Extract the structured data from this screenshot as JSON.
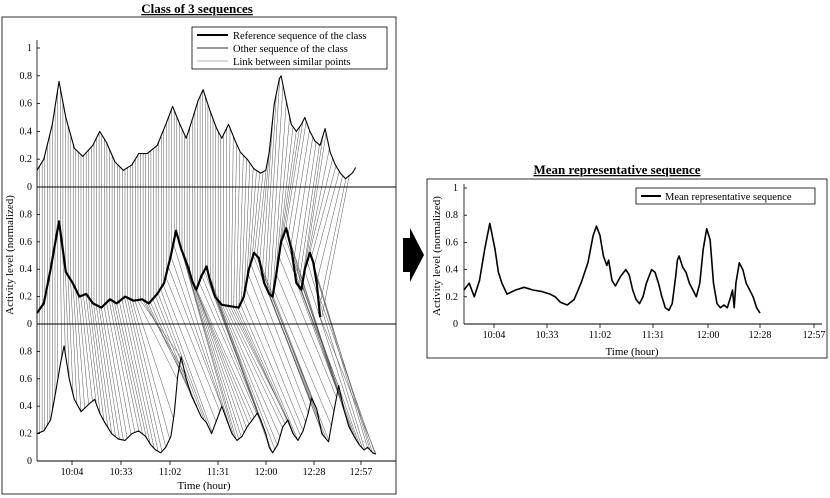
{
  "arrow_icon": "right-arrow-icon",
  "chart_data": [
    {
      "type": "line",
      "title": "Class of 3 sequences",
      "xlabel": "Time (hour)",
      "ylabel": "Activity level (normalized)",
      "x_ticks": [
        "10:04",
        "10:33",
        "11:02",
        "11:31",
        "12:00",
        "12:28",
        "12:57"
      ],
      "y_ticks": [
        "0",
        "0.2",
        "0.4",
        "0.6",
        "0.8",
        "1"
      ],
      "y_ticks_mid": [
        "0",
        "0.2",
        "0.4",
        "0.6",
        "0.8"
      ],
      "ylim": [
        0,
        1
      ],
      "legend": [
        "Reference sequence of the class",
        "Other sequence of the class",
        "Link between similar points"
      ],
      "series": [
        {
          "name": "Other sequence (top)",
          "points": [
            [
              0,
              0.12
            ],
            [
              0.02,
              0.2
            ],
            [
              0.045,
              0.45
            ],
            [
              0.065,
              0.76
            ],
            [
              0.085,
              0.5
            ],
            [
              0.11,
              0.28
            ],
            [
              0.135,
              0.22
            ],
            [
              0.165,
              0.3
            ],
            [
              0.185,
              0.4
            ],
            [
              0.205,
              0.32
            ],
            [
              0.23,
              0.18
            ],
            [
              0.255,
              0.12
            ],
            [
              0.28,
              0.16
            ],
            [
              0.3,
              0.24
            ],
            [
              0.325,
              0.24
            ],
            [
              0.355,
              0.3
            ],
            [
              0.38,
              0.45
            ],
            [
              0.4,
              0.58
            ],
            [
              0.42,
              0.46
            ],
            [
              0.44,
              0.35
            ],
            [
              0.46,
              0.5
            ],
            [
              0.475,
              0.62
            ],
            [
              0.49,
              0.7
            ],
            [
              0.51,
              0.55
            ],
            [
              0.53,
              0.42
            ],
            [
              0.545,
              0.35
            ],
            [
              0.555,
              0.4
            ],
            [
              0.565,
              0.45
            ],
            [
              0.585,
              0.33
            ],
            [
              0.6,
              0.25
            ],
            [
              0.62,
              0.2
            ],
            [
              0.64,
              0.13
            ],
            [
              0.66,
              0.1
            ],
            [
              0.675,
              0.12
            ],
            [
              0.685,
              0.25
            ],
            [
              0.7,
              0.6
            ],
            [
              0.715,
              0.78
            ],
            [
              0.72,
              0.8
            ],
            [
              0.735,
              0.62
            ],
            [
              0.75,
              0.45
            ],
            [
              0.765,
              0.4
            ],
            [
              0.78,
              0.45
            ],
            [
              0.79,
              0.5
            ],
            [
              0.805,
              0.4
            ],
            [
              0.82,
              0.33
            ],
            [
              0.835,
              0.3
            ],
            [
              0.85,
              0.42
            ],
            [
              0.865,
              0.25
            ],
            [
              0.88,
              0.16
            ],
            [
              0.895,
              0.1
            ],
            [
              0.91,
              0.06
            ],
            [
              0.93,
              0.1
            ],
            [
              0.94,
              0.14
            ]
          ]
        },
        {
          "name": "Reference sequence (middle)",
          "points": [
            [
              0,
              0.08
            ],
            [
              0.02,
              0.15
            ],
            [
              0.04,
              0.4
            ],
            [
              0.065,
              0.75
            ],
            [
              0.085,
              0.38
            ],
            [
              0.105,
              0.3
            ],
            [
              0.125,
              0.2
            ],
            [
              0.145,
              0.22
            ],
            [
              0.165,
              0.15
            ],
            [
              0.19,
              0.12
            ],
            [
              0.215,
              0.18
            ],
            [
              0.235,
              0.15
            ],
            [
              0.26,
              0.2
            ],
            [
              0.285,
              0.17
            ],
            [
              0.31,
              0.18
            ],
            [
              0.33,
              0.15
            ],
            [
              0.355,
              0.22
            ],
            [
              0.375,
              0.3
            ],
            [
              0.395,
              0.5
            ],
            [
              0.41,
              0.68
            ],
            [
              0.425,
              0.55
            ],
            [
              0.445,
              0.42
            ],
            [
              0.46,
              0.3
            ],
            [
              0.47,
              0.25
            ],
            [
              0.485,
              0.35
            ],
            [
              0.5,
              0.42
            ],
            [
              0.51,
              0.32
            ],
            [
              0.525,
              0.2
            ],
            [
              0.545,
              0.14
            ],
            [
              0.57,
              0.13
            ],
            [
              0.595,
              0.12
            ],
            [
              0.61,
              0.2
            ],
            [
              0.625,
              0.4
            ],
            [
              0.64,
              0.52
            ],
            [
              0.655,
              0.48
            ],
            [
              0.67,
              0.3
            ],
            [
              0.685,
              0.22
            ],
            [
              0.695,
              0.2
            ],
            [
              0.705,
              0.35
            ],
            [
              0.72,
              0.6
            ],
            [
              0.735,
              0.7
            ],
            [
              0.75,
              0.55
            ],
            [
              0.765,
              0.3
            ],
            [
              0.78,
              0.25
            ],
            [
              0.79,
              0.4
            ],
            [
              0.805,
              0.52
            ],
            [
              0.815,
              0.45
            ],
            [
              0.825,
              0.3
            ],
            [
              0.835,
              0.05
            ]
          ]
        },
        {
          "name": "Other sequence (bottom)",
          "points": [
            [
              0,
              0.2
            ],
            [
              0.02,
              0.22
            ],
            [
              0.04,
              0.3
            ],
            [
              0.055,
              0.5
            ],
            [
              0.07,
              0.72
            ],
            [
              0.08,
              0.84
            ],
            [
              0.095,
              0.6
            ],
            [
              0.11,
              0.45
            ],
            [
              0.13,
              0.36
            ],
            [
              0.155,
              0.42
            ],
            [
              0.17,
              0.45
            ],
            [
              0.185,
              0.35
            ],
            [
              0.2,
              0.28
            ],
            [
              0.22,
              0.2
            ],
            [
              0.24,
              0.16
            ],
            [
              0.26,
              0.15
            ],
            [
              0.28,
              0.2
            ],
            [
              0.3,
              0.22
            ],
            [
              0.32,
              0.18
            ],
            [
              0.335,
              0.12
            ],
            [
              0.35,
              0.08
            ],
            [
              0.365,
              0.06
            ],
            [
              0.38,
              0.1
            ],
            [
              0.395,
              0.18
            ],
            [
              0.405,
              0.35
            ],
            [
              0.415,
              0.62
            ],
            [
              0.425,
              0.76
            ],
            [
              0.44,
              0.6
            ],
            [
              0.455,
              0.48
            ],
            [
              0.47,
              0.4
            ],
            [
              0.485,
              0.32
            ],
            [
              0.5,
              0.28
            ],
            [
              0.515,
              0.2
            ],
            [
              0.53,
              0.3
            ],
            [
              0.545,
              0.4
            ],
            [
              0.56,
              0.3
            ],
            [
              0.575,
              0.2
            ],
            [
              0.59,
              0.15
            ],
            [
              0.605,
              0.18
            ],
            [
              0.62,
              0.25
            ],
            [
              0.635,
              0.3
            ],
            [
              0.65,
              0.35
            ],
            [
              0.66,
              0.3
            ],
            [
              0.675,
              0.2
            ],
            [
              0.685,
              0.1
            ],
            [
              0.695,
              0.06
            ],
            [
              0.71,
              0.12
            ],
            [
              0.725,
              0.25
            ],
            [
              0.74,
              0.3
            ],
            [
              0.755,
              0.2
            ],
            [
              0.77,
              0.15
            ],
            [
              0.785,
              0.22
            ],
            [
              0.8,
              0.35
            ],
            [
              0.81,
              0.46
            ],
            [
              0.825,
              0.38
            ],
            [
              0.84,
              0.2
            ],
            [
              0.86,
              0.14
            ],
            [
              0.875,
              0.35
            ],
            [
              0.89,
              0.55
            ],
            [
              0.905,
              0.38
            ],
            [
              0.92,
              0.25
            ],
            [
              0.935,
              0.18
            ],
            [
              0.95,
              0.12
            ],
            [
              0.965,
              0.08
            ],
            [
              0.975,
              0.1
            ],
            [
              0.99,
              0.06
            ],
            [
              1,
              0.05
            ]
          ]
        }
      ]
    },
    {
      "type": "line",
      "title": "Mean representative sequence",
      "xlabel": "Time (hour)",
      "ylabel": "Activity level (normalized)",
      "x_ticks": [
        "10:04",
        "10:33",
        "11:02",
        "11:31",
        "12:00",
        "12:28",
        "12:57"
      ],
      "y_ticks": [
        "0",
        "0.2",
        "0.4",
        "0.6",
        "0.8",
        "1"
      ],
      "ylim": [
        0,
        1
      ],
      "legend": [
        "Mean representative sequence"
      ],
      "series": [
        {
          "name": "Mean representative sequence",
          "points": [
            [
              0,
              0.25
            ],
            [
              0.015,
              0.3
            ],
            [
              0.03,
              0.2
            ],
            [
              0.045,
              0.32
            ],
            [
              0.06,
              0.55
            ],
            [
              0.075,
              0.74
            ],
            [
              0.09,
              0.55
            ],
            [
              0.1,
              0.38
            ],
            [
              0.11,
              0.3
            ],
            [
              0.125,
              0.22
            ],
            [
              0.15,
              0.25
            ],
            [
              0.175,
              0.27
            ],
            [
              0.2,
              0.25
            ],
            [
              0.225,
              0.24
            ],
            [
              0.25,
              0.22
            ],
            [
              0.265,
              0.2
            ],
            [
              0.28,
              0.16
            ],
            [
              0.3,
              0.14
            ],
            [
              0.32,
              0.18
            ],
            [
              0.34,
              0.3
            ],
            [
              0.36,
              0.45
            ],
            [
              0.375,
              0.65
            ],
            [
              0.385,
              0.72
            ],
            [
              0.395,
              0.65
            ],
            [
              0.405,
              0.5
            ],
            [
              0.415,
              0.43
            ],
            [
              0.42,
              0.47
            ],
            [
              0.43,
              0.32
            ],
            [
              0.44,
              0.28
            ],
            [
              0.455,
              0.35
            ],
            [
              0.47,
              0.4
            ],
            [
              0.48,
              0.36
            ],
            [
              0.49,
              0.25
            ],
            [
              0.5,
              0.18
            ],
            [
              0.51,
              0.15
            ],
            [
              0.52,
              0.2
            ],
            [
              0.53,
              0.3
            ],
            [
              0.545,
              0.4
            ],
            [
              0.555,
              0.38
            ],
            [
              0.565,
              0.3
            ],
            [
              0.575,
              0.2
            ],
            [
              0.585,
              0.12
            ],
            [
              0.595,
              0.1
            ],
            [
              0.605,
              0.15
            ],
            [
              0.615,
              0.35
            ],
            [
              0.62,
              0.47
            ],
            [
              0.625,
              0.5
            ],
            [
              0.635,
              0.42
            ],
            [
              0.645,
              0.38
            ],
            [
              0.655,
              0.3
            ],
            [
              0.665,
              0.25
            ],
            [
              0.675,
              0.2
            ],
            [
              0.685,
              0.3
            ],
            [
              0.695,
              0.55
            ],
            [
              0.705,
              0.7
            ],
            [
              0.715,
              0.62
            ],
            [
              0.725,
              0.3
            ],
            [
              0.735,
              0.15
            ],
            [
              0.745,
              0.12
            ],
            [
              0.755,
              0.14
            ],
            [
              0.765,
              0.12
            ],
            [
              0.775,
              0.2
            ],
            [
              0.78,
              0.25
            ],
            [
              0.785,
              0.12
            ],
            [
              0.79,
              0.3
            ],
            [
              0.8,
              0.45
            ],
            [
              0.81,
              0.4
            ],
            [
              0.82,
              0.3
            ],
            [
              0.83,
              0.25
            ],
            [
              0.84,
              0.2
            ],
            [
              0.85,
              0.12
            ],
            [
              0.86,
              0.08
            ]
          ]
        }
      ]
    }
  ]
}
